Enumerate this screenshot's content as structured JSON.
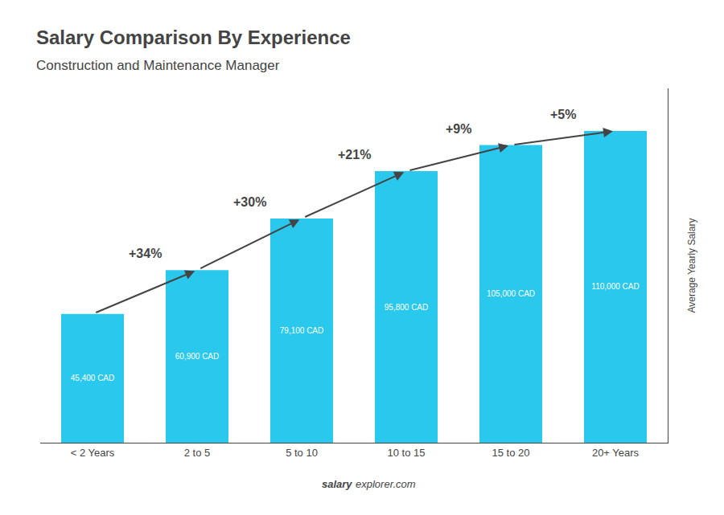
{
  "chart_data": {
    "type": "bar",
    "title": "Salary Comparison By Experience",
    "subtitle": "Construction and Maintenance Manager",
    "ylabel": "Average Yearly Salary",
    "categories": [
      "< 2 Years",
      "2 to 5",
      "5 to 10",
      "10 to 15",
      "15 to 20",
      "20+ Years"
    ],
    "values": [
      45400,
      60900,
      79100,
      95800,
      105000,
      110000
    ],
    "value_labels": [
      "45,400 CAD",
      "60,900 CAD",
      "79,100 CAD",
      "95,800 CAD",
      "105,000 CAD",
      "110,000 CAD"
    ],
    "data_labels": true,
    "color": "#29C8EC",
    "ylim": [
      0,
      125000
    ],
    "yticks": [],
    "tick_labels": "x",
    "grid": false,
    "annotations": [
      {
        "from": "< 2 Years",
        "to": "2 to 5",
        "text": "+34%"
      },
      {
        "from": "2 to 5",
        "to": "5 to 10",
        "text": "+30%"
      },
      {
        "from": "5 to 10",
        "to": "10 to 15",
        "text": "+21%"
      },
      {
        "from": "10 to 15",
        "to": "15 to 20",
        "text": "+9%"
      },
      {
        "from": "15 to 20",
        "to": "20+ Years",
        "text": "+5%"
      }
    ],
    "footer": [
      "salary",
      "explorer.com"
    ]
  }
}
